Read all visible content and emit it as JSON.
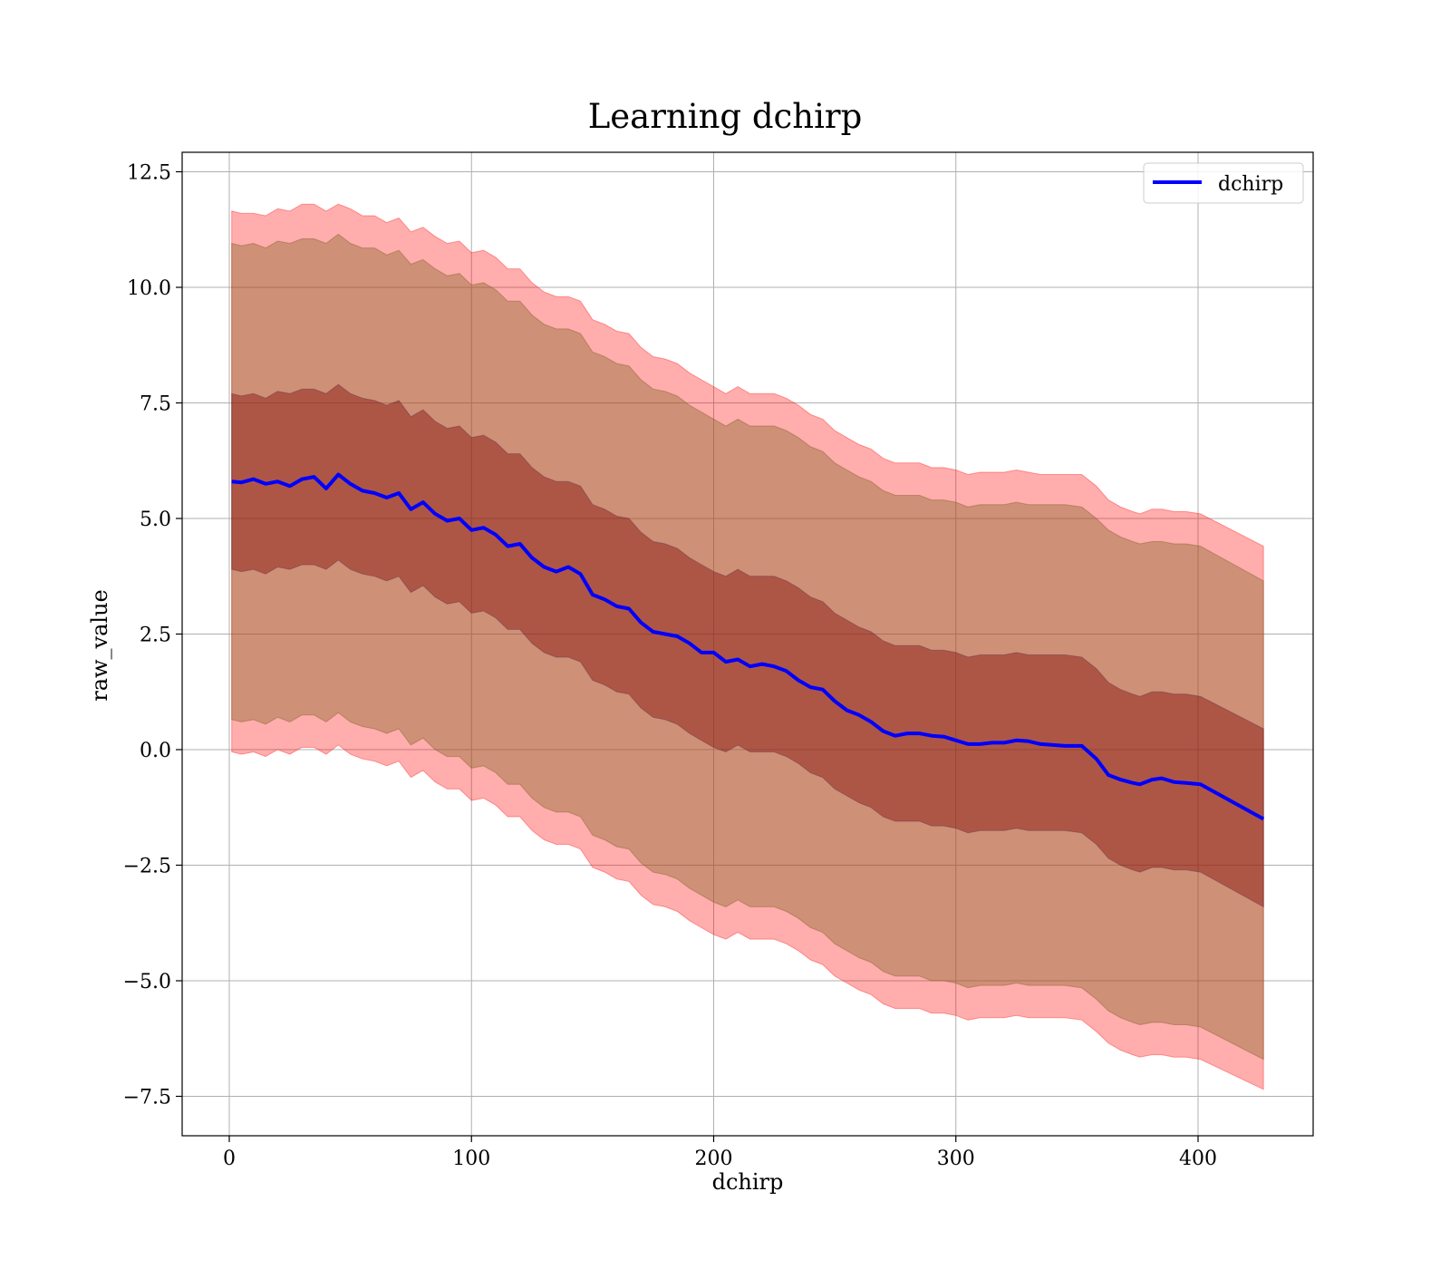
{
  "chart_data": {
    "type": "area",
    "title": "Learning dchirp",
    "xlabel": "dchirp",
    "ylabel": "raw_value",
    "xlim": [
      -19,
      447
    ],
    "ylim": [
      -8.2,
      12.9
    ],
    "x_ticks": [
      0,
      100,
      200,
      300,
      400
    ],
    "x_tick_labels": [
      "0",
      "100",
      "200",
      "300",
      "400"
    ],
    "y_ticks": [
      -7.5,
      -5.0,
      -2.5,
      0.0,
      2.5,
      5.0,
      7.5,
      10.0,
      12.5
    ],
    "y_tick_labels": [
      "−7.5",
      "−5.0",
      "−2.5",
      "0.0",
      "2.5",
      "5.0",
      "7.5",
      "10.0",
      "12.5"
    ],
    "grid": true,
    "legend": {
      "placement": "top-right",
      "entries": [
        "dchirp"
      ]
    },
    "colors": {
      "line": "#0000ff",
      "band_outer": "#ff0000",
      "band_inner": "#800000",
      "band_outer_alpha": 0.32,
      "band_inner_alpha": 0.32
    },
    "series": [
      {
        "name": "dchirp",
        "x": [
          1,
          5,
          10,
          15,
          20,
          25,
          30,
          35,
          40,
          45,
          50,
          55,
          60,
          65,
          70,
          75,
          80,
          85,
          90,
          95,
          100,
          105,
          110,
          115,
          120,
          125,
          130,
          135,
          140,
          145,
          150,
          155,
          160,
          165,
          170,
          175,
          180,
          185,
          190,
          195,
          200,
          205,
          210,
          215,
          220,
          225,
          230,
          235,
          240,
          245,
          250,
          255,
          260,
          265,
          270,
          275,
          280,
          285,
          290,
          295,
          300,
          305,
          310,
          315,
          320,
          325,
          330,
          335,
          340,
          345,
          352,
          358,
          363,
          368,
          373,
          376,
          381,
          385,
          390,
          395,
          401,
          427
        ],
        "mean": [
          5.8,
          5.78,
          5.85,
          5.75,
          5.8,
          5.7,
          5.85,
          5.9,
          5.65,
          5.95,
          5.75,
          5.6,
          5.55,
          5.45,
          5.55,
          5.2,
          5.35,
          5.1,
          4.95,
          5.0,
          4.75,
          4.8,
          4.65,
          4.4,
          4.45,
          4.15,
          3.95,
          3.85,
          3.95,
          3.8,
          3.35,
          3.25,
          3.1,
          3.05,
          2.75,
          2.55,
          2.5,
          2.45,
          2.3,
          2.1,
          2.1,
          1.9,
          1.95,
          1.8,
          1.85,
          1.8,
          1.7,
          1.5,
          1.35,
          1.3,
          1.05,
          0.85,
          0.75,
          0.6,
          0.4,
          0.3,
          0.35,
          0.35,
          0.3,
          0.28,
          0.2,
          0.12,
          0.12,
          0.15,
          0.15,
          0.2,
          0.18,
          0.12,
          0.1,
          0.08,
          0.08,
          -0.2,
          -0.55,
          -0.65,
          -0.72,
          -0.75,
          -0.65,
          -0.62,
          -0.7,
          -0.72,
          -0.75,
          -1.5
        ],
        "band_outer_upper": [
          11.65,
          11.6,
          11.6,
          11.55,
          11.7,
          11.65,
          11.8,
          11.8,
          11.65,
          11.8,
          11.7,
          11.55,
          11.55,
          11.4,
          11.5,
          11.2,
          11.3,
          11.1,
          10.95,
          11.0,
          10.75,
          10.8,
          10.65,
          10.4,
          10.4,
          10.1,
          9.9,
          9.8,
          9.8,
          9.7,
          9.3,
          9.2,
          9.05,
          9.0,
          8.7,
          8.5,
          8.45,
          8.35,
          8.15,
          8.0,
          7.85,
          7.7,
          7.85,
          7.7,
          7.7,
          7.7,
          7.6,
          7.45,
          7.25,
          7.15,
          6.9,
          6.75,
          6.6,
          6.5,
          6.3,
          6.2,
          6.2,
          6.2,
          6.1,
          6.1,
          6.05,
          5.95,
          6.0,
          6.0,
          6.0,
          6.05,
          6.0,
          5.95,
          5.95,
          5.95,
          5.95,
          5.7,
          5.4,
          5.25,
          5.15,
          5.1,
          5.2,
          5.2,
          5.15,
          5.15,
          5.1,
          4.4
        ],
        "band_inner_upper": [
          10.95,
          10.9,
          10.95,
          10.85,
          11.0,
          10.95,
          11.05,
          11.05,
          10.95,
          11.15,
          10.95,
          10.85,
          10.85,
          10.7,
          10.8,
          10.5,
          10.6,
          10.4,
          10.25,
          10.3,
          10.05,
          10.1,
          9.95,
          9.7,
          9.7,
          9.4,
          9.2,
          9.1,
          9.1,
          9.0,
          8.6,
          8.5,
          8.35,
          8.3,
          8.0,
          7.8,
          7.75,
          7.65,
          7.45,
          7.3,
          7.15,
          7.0,
          7.15,
          7.0,
          7.0,
          7.0,
          6.9,
          6.75,
          6.55,
          6.45,
          6.2,
          6.05,
          5.9,
          5.8,
          5.6,
          5.5,
          5.5,
          5.5,
          5.4,
          5.4,
          5.35,
          5.25,
          5.3,
          5.3,
          5.3,
          5.35,
          5.3,
          5.3,
          5.3,
          5.3,
          5.25,
          5.0,
          4.75,
          4.6,
          4.5,
          4.45,
          4.5,
          4.5,
          4.45,
          4.45,
          4.4,
          3.65
        ],
        "band_inner_lower": [
          0.65,
          0.6,
          0.65,
          0.55,
          0.7,
          0.6,
          0.75,
          0.75,
          0.6,
          0.8,
          0.6,
          0.5,
          0.45,
          0.35,
          0.45,
          0.1,
          0.25,
          0.0,
          -0.15,
          -0.15,
          -0.4,
          -0.35,
          -0.5,
          -0.75,
          -0.75,
          -1.05,
          -1.25,
          -1.35,
          -1.35,
          -1.45,
          -1.85,
          -1.95,
          -2.1,
          -2.15,
          -2.45,
          -2.65,
          -2.7,
          -2.8,
          -3.0,
          -3.15,
          -3.3,
          -3.4,
          -3.25,
          -3.4,
          -3.4,
          -3.4,
          -3.5,
          -3.65,
          -3.85,
          -3.95,
          -4.2,
          -4.35,
          -4.5,
          -4.6,
          -4.8,
          -4.9,
          -4.9,
          -4.9,
          -5.0,
          -5.0,
          -5.05,
          -5.15,
          -5.1,
          -5.1,
          -5.1,
          -5.05,
          -5.1,
          -5.1,
          -5.1,
          -5.1,
          -5.15,
          -5.4,
          -5.65,
          -5.8,
          -5.9,
          -5.95,
          -5.9,
          -5.9,
          -5.95,
          -5.95,
          -6.0,
          -6.7
        ],
        "band_outer_lower": [
          -0.05,
          -0.1,
          -0.05,
          -0.15,
          0.0,
          -0.1,
          0.05,
          0.05,
          -0.1,
          0.1,
          -0.1,
          -0.2,
          -0.25,
          -0.35,
          -0.25,
          -0.6,
          -0.45,
          -0.7,
          -0.85,
          -0.85,
          -1.1,
          -1.05,
          -1.2,
          -1.45,
          -1.45,
          -1.75,
          -1.95,
          -2.05,
          -2.05,
          -2.15,
          -2.55,
          -2.65,
          -2.8,
          -2.85,
          -3.15,
          -3.35,
          -3.4,
          -3.5,
          -3.7,
          -3.85,
          -4.0,
          -4.1,
          -3.95,
          -4.1,
          -4.1,
          -4.1,
          -4.2,
          -4.35,
          -4.55,
          -4.65,
          -4.9,
          -5.05,
          -5.2,
          -5.3,
          -5.5,
          -5.6,
          -5.6,
          -5.6,
          -5.7,
          -5.7,
          -5.75,
          -5.85,
          -5.8,
          -5.8,
          -5.8,
          -5.75,
          -5.8,
          -5.8,
          -5.8,
          -5.8,
          -5.85,
          -6.1,
          -6.35,
          -6.5,
          -6.6,
          -6.65,
          -6.6,
          -6.6,
          -6.65,
          -6.65,
          -6.7,
          -7.35
        ],
        "band_mid_upper": [
          7.7,
          7.65,
          7.7,
          7.6,
          7.75,
          7.7,
          7.8,
          7.8,
          7.7,
          7.9,
          7.7,
          7.6,
          7.55,
          7.45,
          7.55,
          7.2,
          7.35,
          7.1,
          6.95,
          7.0,
          6.75,
          6.8,
          6.65,
          6.4,
          6.4,
          6.1,
          5.9,
          5.8,
          5.8,
          5.7,
          5.3,
          5.2,
          5.05,
          5.0,
          4.7,
          4.5,
          4.45,
          4.35,
          4.15,
          4.0,
          3.85,
          3.75,
          3.9,
          3.75,
          3.75,
          3.75,
          3.65,
          3.5,
          3.3,
          3.2,
          2.95,
          2.8,
          2.65,
          2.55,
          2.35,
          2.25,
          2.25,
          2.25,
          2.15,
          2.15,
          2.1,
          2.0,
          2.05,
          2.05,
          2.05,
          2.1,
          2.05,
          2.05,
          2.05,
          2.05,
          2.0,
          1.75,
          1.45,
          1.3,
          1.2,
          1.15,
          1.25,
          1.25,
          1.2,
          1.2,
          1.15,
          0.45
        ],
        "band_mid_lower": [
          3.9,
          3.85,
          3.9,
          3.8,
          3.95,
          3.9,
          4.0,
          4.0,
          3.9,
          4.1,
          3.9,
          3.8,
          3.75,
          3.65,
          3.75,
          3.4,
          3.55,
          3.3,
          3.15,
          3.2,
          2.95,
          3.0,
          2.85,
          2.6,
          2.6,
          2.3,
          2.1,
          2.0,
          2.0,
          1.9,
          1.5,
          1.4,
          1.25,
          1.2,
          0.9,
          0.7,
          0.65,
          0.55,
          0.35,
          0.2,
          0.05,
          -0.05,
          0.1,
          -0.05,
          -0.05,
          -0.05,
          -0.15,
          -0.3,
          -0.5,
          -0.6,
          -0.85,
          -1.0,
          -1.15,
          -1.25,
          -1.45,
          -1.55,
          -1.55,
          -1.55,
          -1.65,
          -1.65,
          -1.7,
          -1.8,
          -1.75,
          -1.75,
          -1.75,
          -1.7,
          -1.75,
          -1.75,
          -1.75,
          -1.75,
          -1.8,
          -2.05,
          -2.35,
          -2.5,
          -2.6,
          -2.65,
          -2.55,
          -2.55,
          -2.6,
          -2.6,
          -2.65,
          -3.4
        ]
      }
    ]
  }
}
